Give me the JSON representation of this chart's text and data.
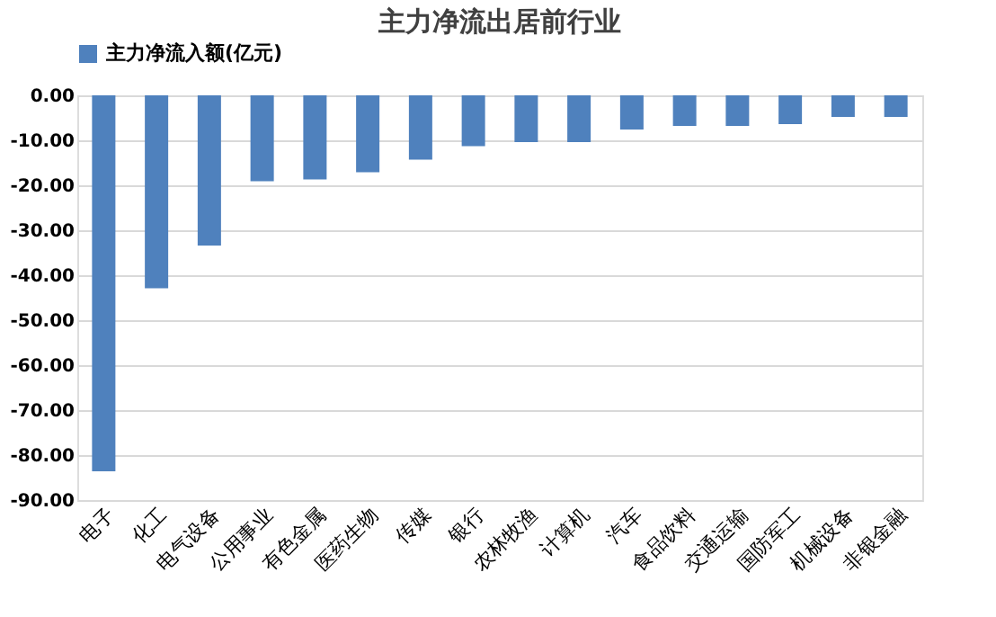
{
  "chart_data": {
    "type": "bar",
    "title": "主力净流出居前行业",
    "categories": [
      "电子",
      "化工",
      "电气设备",
      "公用事业",
      "有色金属",
      "医药生物",
      "传媒",
      "银行",
      "农林牧渔",
      "计算机",
      "汽车",
      "食品饮料",
      "交通运输",
      "国防军工",
      "机械设备",
      "非银金融"
    ],
    "series": [
      {
        "name": "主力净流入额(亿元)",
        "color": "#4f81bd",
        "values": [
          -83.6,
          -42.9,
          -33.4,
          -19.1,
          -18.7,
          -17.1,
          -14.3,
          -11.3,
          -10.4,
          -10.4,
          -7.6,
          -6.8,
          -6.8,
          -6.4,
          -4.8,
          -4.8
        ]
      }
    ],
    "ylim": [
      -90,
      0
    ],
    "yticks": [
      {
        "value": 0,
        "label": "0.00"
      },
      {
        "value": -10,
        "label": "-10.00"
      },
      {
        "value": -20,
        "label": "-20.00"
      },
      {
        "value": -30,
        "label": "-30.00"
      },
      {
        "value": -40,
        "label": "-40.00"
      },
      {
        "value": -50,
        "label": "-50.00"
      },
      {
        "value": -60,
        "label": "-60.00"
      },
      {
        "value": -70,
        "label": "-70.00"
      },
      {
        "value": -80,
        "label": "-80.00"
      },
      {
        "value": -90,
        "label": "-90.00"
      }
    ],
    "grid": "y",
    "legend": "top"
  }
}
